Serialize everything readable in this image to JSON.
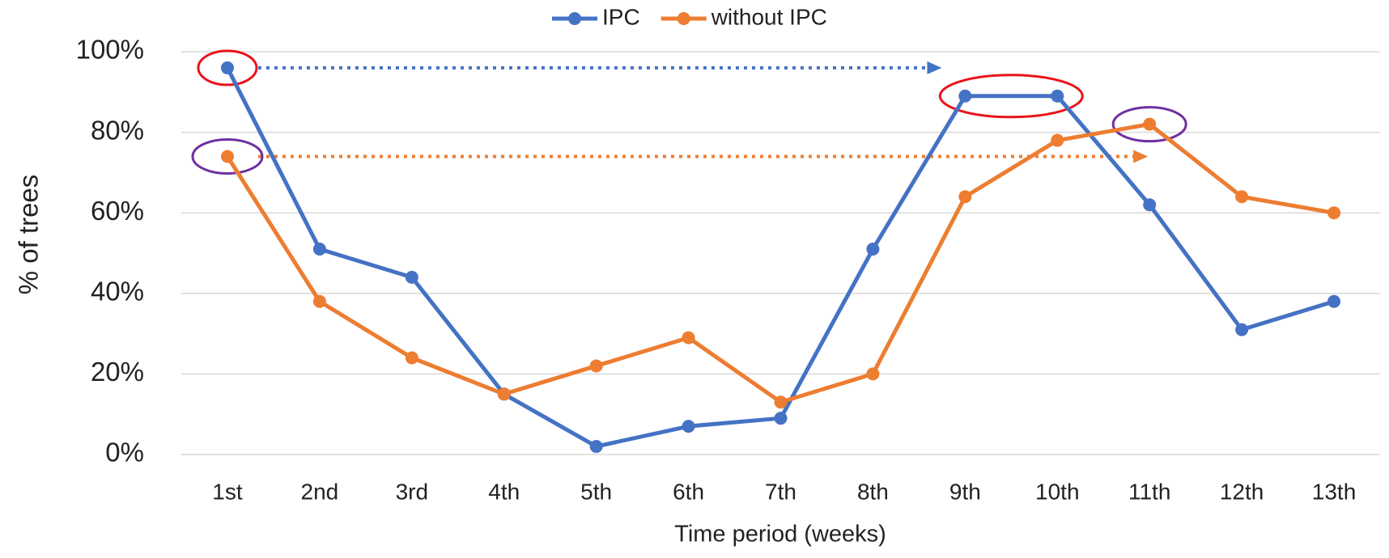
{
  "chart_data": {
    "type": "line",
    "categories": [
      "1st",
      "2nd",
      "3rd",
      "4th",
      "5th",
      "6th",
      "7th",
      "8th",
      "9th",
      "10th",
      "11th",
      "12th",
      "13th"
    ],
    "series": [
      {
        "name": "IPC",
        "color": "#4472c4",
        "values": [
          96,
          51,
          44,
          15,
          2,
          7,
          9,
          51,
          89,
          89,
          62,
          31,
          38
        ]
      },
      {
        "name": "without IPC",
        "color": "#ed7d31",
        "values": [
          74,
          38,
          24,
          15,
          22,
          29,
          13,
          20,
          64,
          78,
          82,
          64,
          60
        ]
      }
    ],
    "xlabel": "Time period (weeks)",
    "ylabel": "% of trees",
    "ylim": [
      0,
      100
    ],
    "yticks": [
      {
        "value": 0,
        "label": "0%"
      },
      {
        "value": 20,
        "label": "20%"
      },
      {
        "value": 40,
        "label": "40%"
      },
      {
        "value": 60,
        "label": "60%"
      },
      {
        "value": 80,
        "label": "80%"
      },
      {
        "value": 100,
        "label": "100%"
      }
    ],
    "grid": true,
    "legend": "top"
  }
}
